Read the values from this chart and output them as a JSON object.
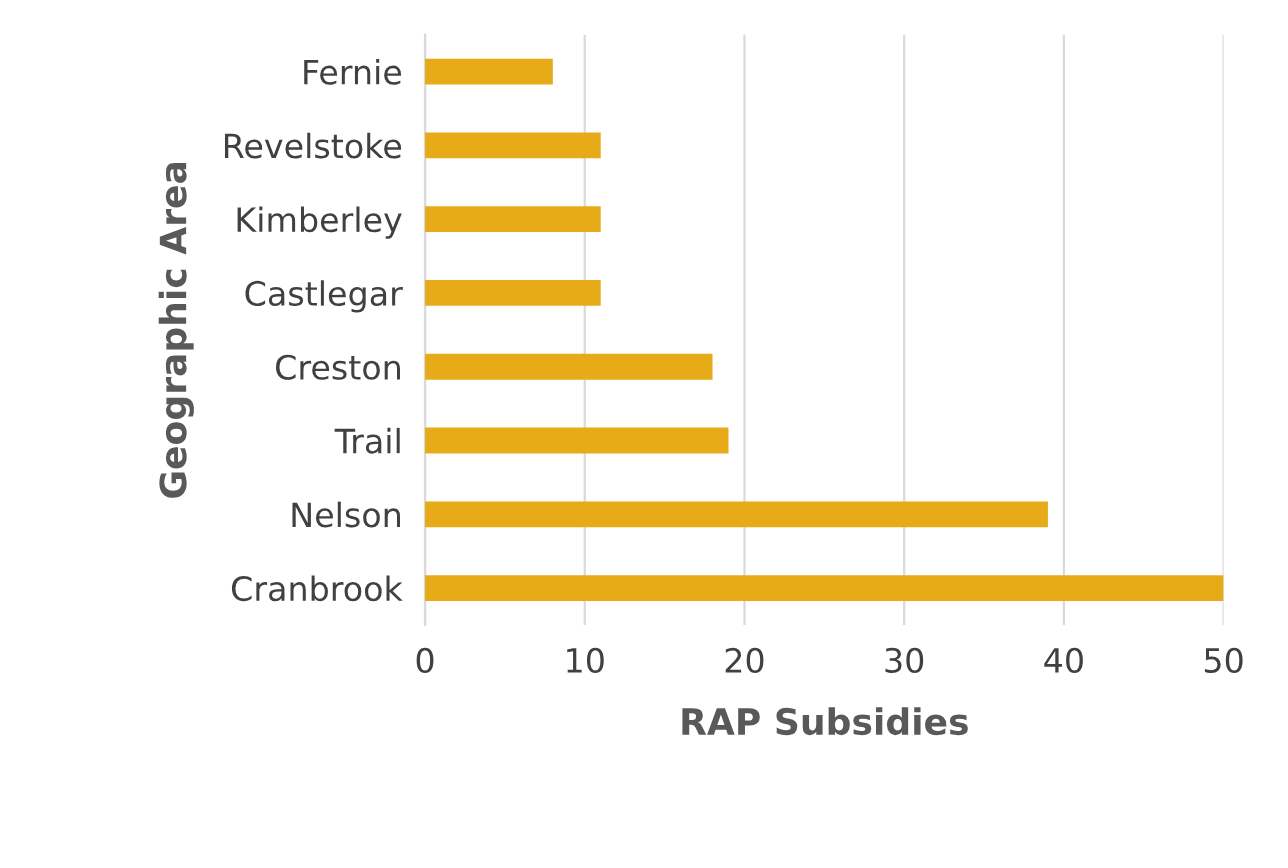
{
  "chart_data": {
    "type": "bar",
    "orientation": "horizontal",
    "xlabel": "RAP Subsidies",
    "ylabel": "Geographic Area",
    "categories": [
      "Fernie",
      "Revelstoke",
      "Kimberley",
      "Castlegar",
      "Creston",
      "Trail",
      "Nelson",
      "Cranbrook"
    ],
    "values": [
      8,
      11,
      11,
      11,
      18,
      19,
      39,
      50
    ],
    "color": "#e6ab17",
    "xlim": [
      0,
      50
    ],
    "xticks": [
      0,
      10,
      20,
      30,
      40,
      50
    ],
    "grid": "x"
  }
}
